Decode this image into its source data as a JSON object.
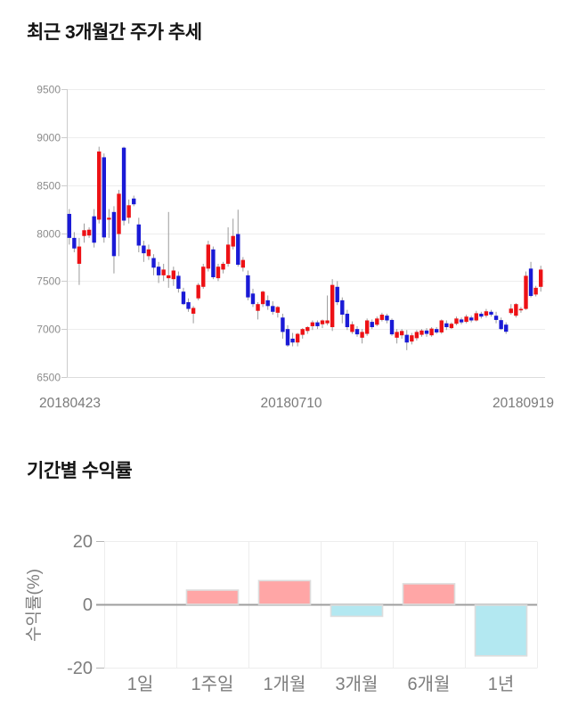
{
  "page": {
    "background": "#ffffff"
  },
  "chart_data": [
    {
      "type": "candlestick",
      "title": "최근 3개월간 주가 추세",
      "x_tick_labels": [
        "20180423",
        "20180710",
        "20180919"
      ],
      "y_tick_labels": [
        "9500",
        "9000",
        "8500",
        "8000",
        "7500",
        "7000",
        "6500"
      ],
      "y_tick_values": [
        9500,
        9000,
        8500,
        8000,
        7500,
        7000,
        6500
      ],
      "ylim": [
        6500,
        9500
      ],
      "grid": true,
      "colors": {
        "up": "#ed1115",
        "down": "#1a1ad6",
        "wick": "#9b9b9b",
        "grid": "#ededed",
        "axis": "#cccccc",
        "label": "#8c8c8c",
        "xlabel": "#7a7a7a"
      },
      "candles_ohlc": [
        [
          8200,
          8250,
          7880,
          7950
        ],
        [
          7950,
          8010,
          7800,
          7840
        ],
        [
          7680,
          7950,
          7460,
          7860
        ],
        [
          7970,
          8100,
          7900,
          8030
        ],
        [
          7975,
          8060,
          7950,
          8035
        ],
        [
          8175,
          8250,
          7850,
          7900
        ],
        [
          8140,
          8900,
          8100,
          8850
        ],
        [
          8790,
          8830,
          7900,
          7955
        ],
        [
          8140,
          8250,
          7950,
          8160
        ],
        [
          8220,
          8280,
          7580,
          7760
        ],
        [
          7990,
          8450,
          7760,
          8410
        ],
        [
          8890,
          8900,
          8080,
          8130
        ],
        [
          8160,
          8350,
          8100,
          8290
        ],
        [
          8360,
          8390,
          8280,
          8300
        ],
        [
          8090,
          8160,
          7800,
          7870
        ],
        [
          7870,
          7920,
          7700,
          7790
        ],
        [
          7760,
          7880,
          7720,
          7830
        ],
        [
          7740,
          7780,
          7560,
          7640
        ],
        [
          7650,
          7700,
          7480,
          7560
        ],
        [
          7560,
          7680,
          7500,
          7620
        ],
        [
          7530,
          8220,
          7430,
          7560
        ],
        [
          7520,
          7650,
          7450,
          7610
        ],
        [
          7555,
          7600,
          7380,
          7420
        ],
        [
          7390,
          7430,
          7250,
          7260
        ],
        [
          7280,
          7320,
          7180,
          7210
        ],
        [
          7160,
          7240,
          7060,
          7220
        ],
        [
          7320,
          7480,
          7300,
          7460
        ],
        [
          7440,
          7680,
          7420,
          7650
        ],
        [
          7630,
          7920,
          7600,
          7880
        ],
        [
          7830,
          7860,
          7520,
          7540
        ],
        [
          7530,
          7680,
          7500,
          7650
        ],
        [
          7620,
          7700,
          7580,
          7680
        ],
        [
          7680,
          8060,
          7650,
          7880
        ],
        [
          7860,
          8150,
          7830,
          7970
        ],
        [
          7990,
          8244,
          7650,
          7670
        ],
        [
          7640,
          7750,
          7600,
          7720
        ],
        [
          7560,
          7610,
          7300,
          7330
        ],
        [
          7370,
          7420,
          7230,
          7260
        ],
        [
          7190,
          7280,
          7100,
          7260
        ],
        [
          7260,
          7400,
          7230,
          7390
        ],
        [
          7300,
          7350,
          7200,
          7240
        ],
        [
          7240,
          7290,
          7150,
          7180
        ],
        [
          7170,
          7240,
          7120,
          7230
        ],
        [
          7120,
          7160,
          6900,
          6970
        ],
        [
          7000,
          7040,
          6815,
          6830
        ],
        [
          6900,
          6960,
          6820,
          6860
        ],
        [
          6860,
          6960,
          6820,
          6950
        ],
        [
          6940,
          7010,
          6900,
          7000
        ],
        [
          6980,
          7030,
          6950,
          7020
        ],
        [
          7030,
          7090,
          6990,
          7070
        ],
        [
          7070,
          7090,
          7000,
          7030
        ],
        [
          7050,
          7100,
          7010,
          7090
        ],
        [
          7060,
          7350,
          7040,
          7090
        ],
        [
          7020,
          7520,
          6980,
          7460
        ],
        [
          7440,
          7500,
          7250,
          7280
        ],
        [
          7300,
          7330,
          7060,
          7150
        ],
        [
          7160,
          7200,
          6990,
          7020
        ],
        [
          6970,
          7080,
          6950,
          7050
        ],
        [
          7000,
          7030,
          6920,
          6945
        ],
        [
          6910,
          7000,
          6850,
          6970
        ],
        [
          6950,
          7110,
          6930,
          7090
        ],
        [
          7075,
          7100,
          7000,
          7020
        ],
        [
          7045,
          7130,
          7030,
          7110
        ],
        [
          7095,
          7170,
          7080,
          7150
        ],
        [
          7140,
          7160,
          7060,
          7090
        ],
        [
          7095,
          7110,
          6930,
          6945
        ],
        [
          6910,
          7000,
          6850,
          6970
        ],
        [
          6935,
          7000,
          6900,
          6980
        ],
        [
          6940,
          6990,
          6780,
          6860
        ],
        [
          6870,
          6960,
          6840,
          6935
        ],
        [
          6905,
          6990,
          6880,
          6970
        ],
        [
          6940,
          7000,
          6920,
          6985
        ],
        [
          6985,
          7010,
          6920,
          6950
        ],
        [
          6935,
          7020,
          6920,
          7005
        ],
        [
          7000,
          7020,
          6950,
          6965
        ],
        [
          6965,
          7100,
          6950,
          7090
        ],
        [
          7060,
          7090,
          6990,
          7020
        ],
        [
          7010,
          7070,
          7000,
          7055
        ],
        [
          7055,
          7130,
          7040,
          7110
        ],
        [
          7100,
          7120,
          7050,
          7070
        ],
        [
          7075,
          7150,
          7060,
          7130
        ],
        [
          7120,
          7140,
          7070,
          7090
        ],
        [
          7090,
          7190,
          7080,
          7165
        ],
        [
          7160,
          7180,
          7110,
          7130
        ],
        [
          7140,
          7210,
          7120,
          7185
        ],
        [
          7180,
          7200,
          7130,
          7150
        ],
        [
          7139,
          7180,
          7060,
          7095
        ],
        [
          7093,
          7120,
          6990,
          7000
        ],
        [
          7046,
          7070,
          6950,
          6972
        ],
        [
          7167,
          7260,
          7150,
          7213
        ],
        [
          7139,
          7270,
          7120,
          7260
        ],
        [
          7200,
          7230,
          7170,
          7210
        ],
        [
          7210,
          7600,
          7200,
          7555
        ],
        [
          7630,
          7700,
          7330,
          7345
        ],
        [
          7360,
          7450,
          7340,
          7430
        ],
        [
          7440,
          7660,
          7390,
          7620
        ]
      ]
    },
    {
      "type": "bar",
      "title": "기간별 수익률",
      "ylabel": "수익률(%)",
      "categories": [
        "1일",
        "1주일",
        "1개월",
        "3개월",
        "6개월",
        "1년"
      ],
      "values": [
        0,
        4.5,
        7.5,
        -3.5,
        6.5,
        -16
      ],
      "y_tick_labels": [
        "20",
        "0",
        "-20"
      ],
      "y_tick_values": [
        20,
        0,
        -20
      ],
      "ylim": [
        -20,
        20
      ],
      "grid": true,
      "legend": "none",
      "colors": {
        "positive": "#ffa6a6",
        "negative": "#b3e8f1",
        "bar_stroke": "#dddddd",
        "zero_line": "#9e9e9e",
        "grid": "#ededed",
        "tick": "#b5b5b5",
        "label": "#7d7d7d"
      }
    }
  ]
}
